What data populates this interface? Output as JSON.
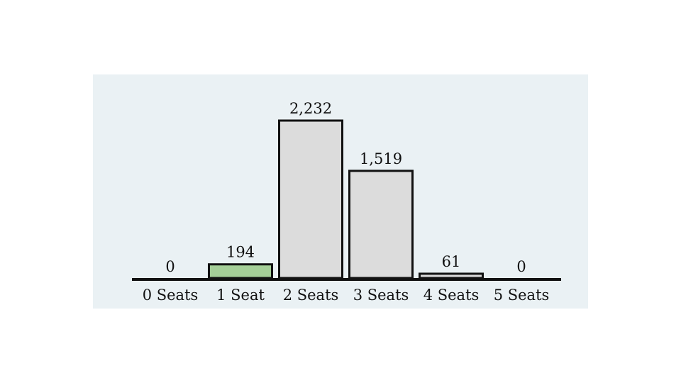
{
  "chart_data": {
    "type": "bar",
    "categories": [
      "0 Seats",
      "1 Seat",
      "2 Seats",
      "3 Seats",
      "4 Seats",
      "5 Seats"
    ],
    "values": [
      0,
      194,
      2232,
      1519,
      61,
      0
    ],
    "value_labels": [
      "0",
      "194",
      "2,232",
      "1,519",
      "61",
      "0"
    ],
    "title": "",
    "xlabel": "",
    "ylabel": "",
    "ylim": [
      0,
      2232
    ],
    "grid": false,
    "legend": "none",
    "highlight_index": 1,
    "colors": {
      "panel_background": "#eaf1f4",
      "bar_fill": "#dcdcdc",
      "highlight_fill": "#a5cf98",
      "bar_stroke": "#111111",
      "baseline": "#111111"
    }
  }
}
